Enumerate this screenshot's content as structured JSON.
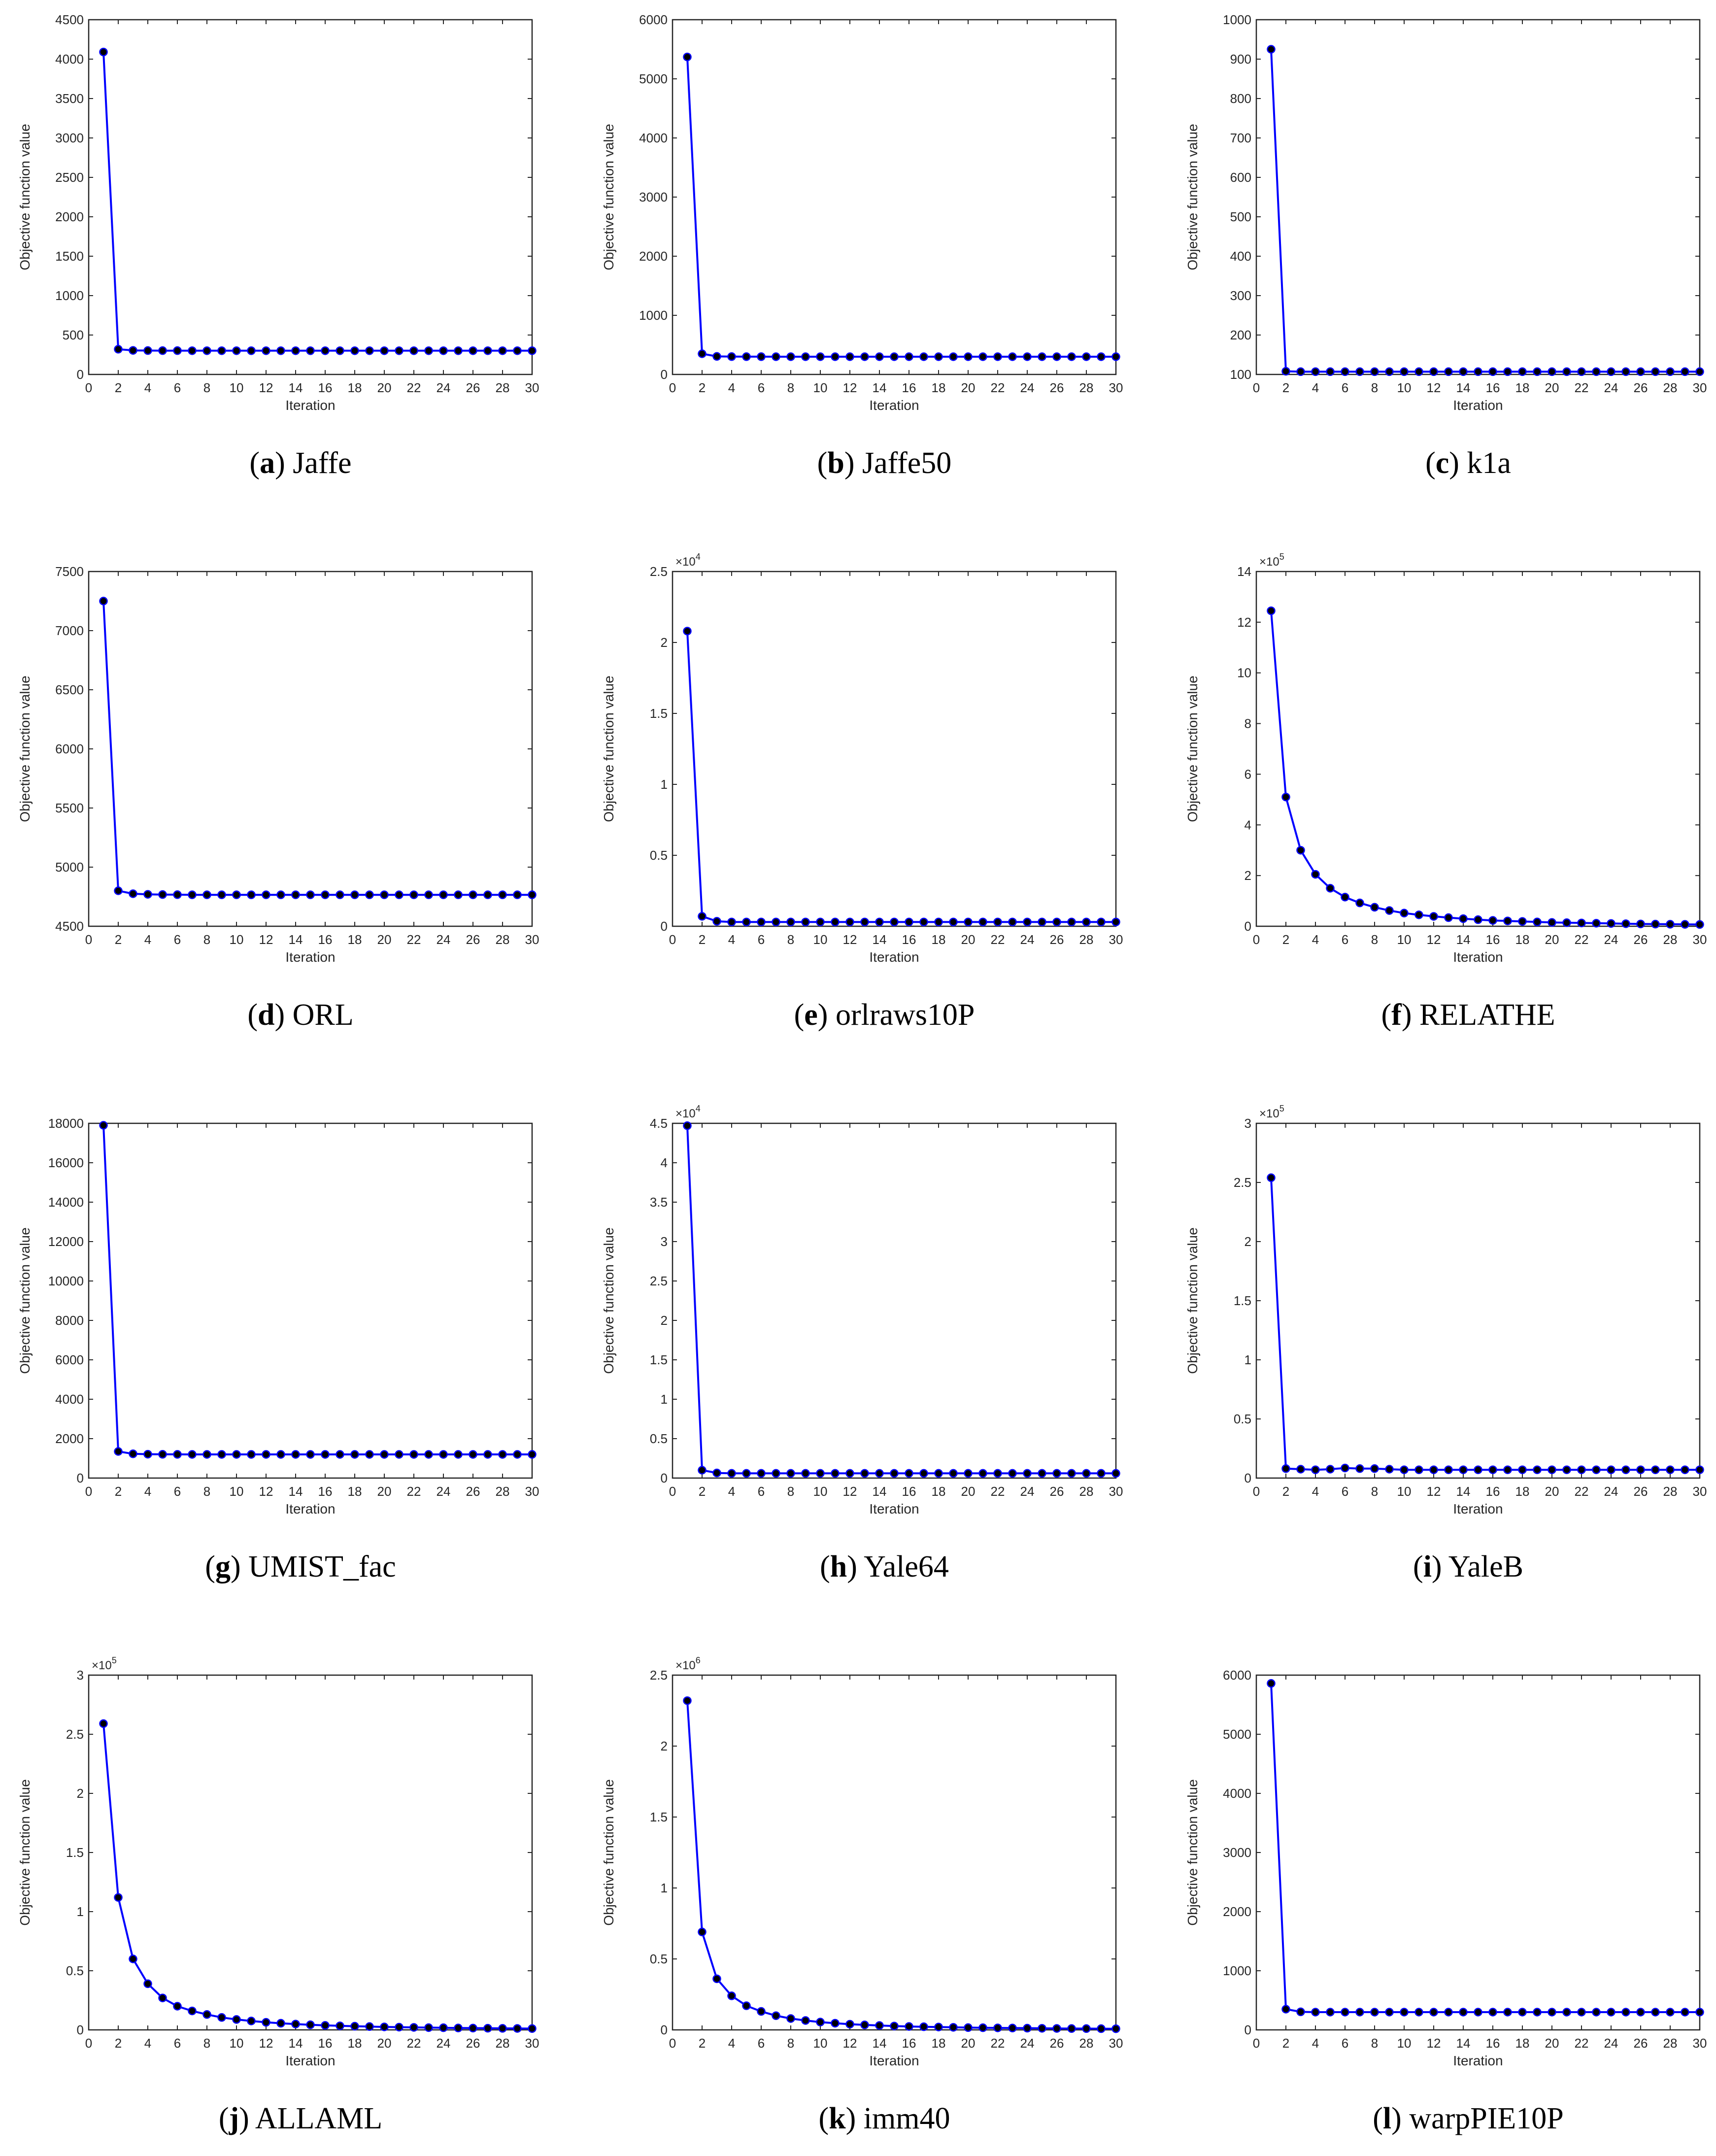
{
  "chart_data": [
    {
      "type": "line",
      "panel": "a",
      "caption": "Jaffe",
      "xlabel": "Iteration",
      "ylabel": "Objective function value",
      "xlim": [
        0,
        30
      ],
      "ylim": [
        0,
        4500
      ],
      "xticks": [
        0,
        2,
        4,
        6,
        8,
        10,
        12,
        14,
        16,
        18,
        20,
        22,
        24,
        26,
        28,
        30
      ],
      "yticks": [
        0,
        500,
        1000,
        1500,
        2000,
        2500,
        3000,
        3500,
        4000,
        4500
      ],
      "multiplier": "",
      "x": [
        1,
        2,
        3,
        4,
        5,
        6,
        7,
        8,
        9,
        10,
        11,
        12,
        13,
        14,
        15,
        16,
        17,
        18,
        19,
        20,
        21,
        22,
        23,
        24,
        25,
        26,
        27,
        28,
        29,
        30
      ],
      "series": [
        {
          "name": "Objective",
          "values": [
            4090,
            320,
            305,
            303,
            302,
            302,
            301,
            301,
            301,
            301,
            301,
            301,
            301,
            301,
            301,
            301,
            301,
            301,
            301,
            301,
            301,
            301,
            301,
            301,
            301,
            301,
            301,
            301,
            301,
            301
          ]
        }
      ]
    },
    {
      "type": "line",
      "panel": "b",
      "caption": "Jaffe50",
      "xlabel": "Iteration",
      "ylabel": "Objective function value",
      "xlim": [
        0,
        30
      ],
      "ylim": [
        0,
        6000
      ],
      "xticks": [
        0,
        2,
        4,
        6,
        8,
        10,
        12,
        14,
        16,
        18,
        20,
        22,
        24,
        26,
        28,
        30
      ],
      "yticks": [
        0,
        1000,
        2000,
        3000,
        4000,
        5000,
        6000
      ],
      "multiplier": "",
      "x": [
        1,
        2,
        3,
        4,
        5,
        6,
        7,
        8,
        9,
        10,
        11,
        12,
        13,
        14,
        15,
        16,
        17,
        18,
        19,
        20,
        21,
        22,
        23,
        24,
        25,
        26,
        27,
        28,
        29,
        30
      ],
      "series": [
        {
          "name": "Objective",
          "values": [
            5370,
            350,
            305,
            302,
            301,
            301,
            300,
            300,
            300,
            300,
            300,
            300,
            300,
            300,
            300,
            300,
            300,
            300,
            300,
            300,
            300,
            300,
            300,
            300,
            300,
            300,
            300,
            300,
            300,
            300
          ]
        }
      ]
    },
    {
      "type": "line",
      "panel": "c",
      "caption": "k1a",
      "xlabel": "Iteration",
      "ylabel": "Objective function value",
      "xlim": [
        0,
        30
      ],
      "ylim": [
        100,
        1000
      ],
      "xticks": [
        0,
        2,
        4,
        6,
        8,
        10,
        12,
        14,
        16,
        18,
        20,
        22,
        24,
        26,
        28,
        30
      ],
      "yticks": [
        100,
        200,
        300,
        400,
        500,
        600,
        700,
        800,
        900,
        1000
      ],
      "multiplier": "",
      "x": [
        1,
        2,
        3,
        4,
        5,
        6,
        7,
        8,
        9,
        10,
        11,
        12,
        13,
        14,
        15,
        16,
        17,
        18,
        19,
        20,
        21,
        22,
        23,
        24,
        25,
        26,
        27,
        28,
        29,
        30
      ],
      "series": [
        {
          "name": "Objective",
          "values": [
            925,
            108,
            107,
            107,
            107,
            107,
            107,
            107,
            107,
            107,
            107,
            107,
            107,
            107,
            107,
            107,
            107,
            107,
            107,
            107,
            107,
            107,
            107,
            107,
            107,
            107,
            107,
            107,
            107,
            107
          ]
        }
      ]
    },
    {
      "type": "line",
      "panel": "d",
      "caption": "ORL",
      "xlabel": "Iteration",
      "ylabel": "Objective function value",
      "xlim": [
        0,
        30
      ],
      "ylim": [
        4500,
        7500
      ],
      "xticks": [
        0,
        2,
        4,
        6,
        8,
        10,
        12,
        14,
        16,
        18,
        20,
        22,
        24,
        26,
        28,
        30
      ],
      "yticks": [
        4500,
        5000,
        5500,
        6000,
        6500,
        7000,
        7500
      ],
      "multiplier": "",
      "x": [
        1,
        2,
        3,
        4,
        5,
        6,
        7,
        8,
        9,
        10,
        11,
        12,
        13,
        14,
        15,
        16,
        17,
        18,
        19,
        20,
        21,
        22,
        23,
        24,
        25,
        26,
        27,
        28,
        29,
        30
      ],
      "series": [
        {
          "name": "Objective",
          "values": [
            7250,
            4800,
            4775,
            4770,
            4768,
            4767,
            4766,
            4766,
            4766,
            4766,
            4766,
            4766,
            4766,
            4766,
            4766,
            4766,
            4766,
            4766,
            4766,
            4766,
            4766,
            4766,
            4766,
            4766,
            4766,
            4766,
            4766,
            4766,
            4766,
            4766
          ]
        }
      ]
    },
    {
      "type": "line",
      "panel": "e",
      "caption": "orlraws10P",
      "xlabel": "Iteration",
      "ylabel": "Objective function value",
      "xlim": [
        0,
        30
      ],
      "ylim": [
        0,
        2.5
      ],
      "xticks": [
        0,
        2,
        4,
        6,
        8,
        10,
        12,
        14,
        16,
        18,
        20,
        22,
        24,
        26,
        28,
        30
      ],
      "yticks": [
        0,
        0.5,
        1,
        1.5,
        2,
        2.5
      ],
      "multiplier": "×10",
      "multiplier_exp": "4",
      "x": [
        1,
        2,
        3,
        4,
        5,
        6,
        7,
        8,
        9,
        10,
        11,
        12,
        13,
        14,
        15,
        16,
        17,
        18,
        19,
        20,
        21,
        22,
        23,
        24,
        25,
        26,
        27,
        28,
        29,
        30
      ],
      "series": [
        {
          "name": "Objective",
          "values": [
            2.08,
            0.07,
            0.035,
            0.03,
            0.03,
            0.03,
            0.03,
            0.03,
            0.03,
            0.03,
            0.03,
            0.03,
            0.03,
            0.03,
            0.03,
            0.03,
            0.03,
            0.03,
            0.03,
            0.03,
            0.03,
            0.03,
            0.03,
            0.03,
            0.03,
            0.03,
            0.03,
            0.03,
            0.03,
            0.03
          ]
        }
      ]
    },
    {
      "type": "line",
      "panel": "f",
      "caption": "RELATHE",
      "xlabel": "Iteration",
      "ylabel": "Objective function value",
      "xlim": [
        0,
        30
      ],
      "ylim": [
        0,
        14
      ],
      "xticks": [
        0,
        2,
        4,
        6,
        8,
        10,
        12,
        14,
        16,
        18,
        20,
        22,
        24,
        26,
        28,
        30
      ],
      "yticks": [
        0,
        2,
        4,
        6,
        8,
        10,
        12,
        14
      ],
      "multiplier": "×10",
      "multiplier_exp": "5",
      "x": [
        1,
        2,
        3,
        4,
        5,
        6,
        7,
        8,
        9,
        10,
        11,
        12,
        13,
        14,
        15,
        16,
        17,
        18,
        19,
        20,
        21,
        22,
        23,
        24,
        25,
        26,
        27,
        28,
        29,
        30
      ],
      "series": [
        {
          "name": "Objective",
          "values": [
            12.45,
            5.1,
            3.0,
            2.05,
            1.5,
            1.15,
            0.92,
            0.75,
            0.62,
            0.52,
            0.45,
            0.39,
            0.34,
            0.3,
            0.26,
            0.23,
            0.21,
            0.19,
            0.17,
            0.15,
            0.14,
            0.13,
            0.12,
            0.11,
            0.1,
            0.09,
            0.085,
            0.08,
            0.075,
            0.07
          ]
        }
      ]
    },
    {
      "type": "line",
      "panel": "g",
      "caption": "UMIST_fac",
      "xlabel": "Iteration",
      "ylabel": "Objective function value",
      "xlim": [
        0,
        30
      ],
      "ylim": [
        0,
        18000
      ],
      "xticks": [
        0,
        2,
        4,
        6,
        8,
        10,
        12,
        14,
        16,
        18,
        20,
        22,
        24,
        26,
        28,
        30
      ],
      "yticks": [
        0,
        2000,
        4000,
        6000,
        8000,
        10000,
        12000,
        14000,
        16000,
        18000
      ],
      "multiplier": "",
      "x": [
        1,
        2,
        3,
        4,
        5,
        6,
        7,
        8,
        9,
        10,
        11,
        12,
        13,
        14,
        15,
        16,
        17,
        18,
        19,
        20,
        21,
        22,
        23,
        24,
        25,
        26,
        27,
        28,
        29,
        30
      ],
      "series": [
        {
          "name": "Objective",
          "values": [
            17900,
            1350,
            1230,
            1210,
            1205,
            1202,
            1200,
            1200,
            1200,
            1200,
            1200,
            1200,
            1200,
            1200,
            1200,
            1200,
            1200,
            1200,
            1200,
            1200,
            1200,
            1200,
            1200,
            1200,
            1200,
            1200,
            1200,
            1200,
            1200,
            1200
          ]
        }
      ]
    },
    {
      "type": "line",
      "panel": "h",
      "caption": "Yale64",
      "xlabel": "Iteration",
      "ylabel": "Objective function value",
      "xlim": [
        0,
        30
      ],
      "ylim": [
        0,
        4.5
      ],
      "xticks": [
        0,
        2,
        4,
        6,
        8,
        10,
        12,
        14,
        16,
        18,
        20,
        22,
        24,
        26,
        28,
        30
      ],
      "yticks": [
        0,
        0.5,
        1,
        1.5,
        2,
        2.5,
        3,
        3.5,
        4,
        4.5
      ],
      "multiplier": "×10",
      "multiplier_exp": "4",
      "x": [
        1,
        2,
        3,
        4,
        5,
        6,
        7,
        8,
        9,
        10,
        11,
        12,
        13,
        14,
        15,
        16,
        17,
        18,
        19,
        20,
        21,
        22,
        23,
        24,
        25,
        26,
        27,
        28,
        29,
        30
      ],
      "series": [
        {
          "name": "Objective",
          "values": [
            4.47,
            0.1,
            0.065,
            0.06,
            0.06,
            0.06,
            0.06,
            0.06,
            0.06,
            0.06,
            0.06,
            0.06,
            0.06,
            0.06,
            0.06,
            0.06,
            0.06,
            0.06,
            0.06,
            0.06,
            0.06,
            0.06,
            0.06,
            0.06,
            0.06,
            0.06,
            0.06,
            0.06,
            0.06,
            0.06
          ]
        }
      ]
    },
    {
      "type": "line",
      "panel": "i",
      "caption": "YaleB",
      "xlabel": "Iteration",
      "ylabel": "Objective function value",
      "xlim": [
        0,
        30
      ],
      "ylim": [
        0,
        3
      ],
      "xticks": [
        0,
        2,
        4,
        6,
        8,
        10,
        12,
        14,
        16,
        18,
        20,
        22,
        24,
        26,
        28,
        30
      ],
      "yticks": [
        0,
        0.5,
        1,
        1.5,
        2,
        2.5,
        3
      ],
      "multiplier": "×10",
      "multiplier_exp": "5",
      "x": [
        1,
        2,
        3,
        4,
        5,
        6,
        7,
        8,
        9,
        10,
        11,
        12,
        13,
        14,
        15,
        16,
        17,
        18,
        19,
        20,
        21,
        22,
        23,
        24,
        25,
        26,
        27,
        28,
        29,
        30
      ],
      "series": [
        {
          "name": "Objective",
          "values": [
            2.54,
            0.08,
            0.075,
            0.07,
            0.075,
            0.085,
            0.08,
            0.08,
            0.075,
            0.07,
            0.07,
            0.07,
            0.07,
            0.07,
            0.07,
            0.07,
            0.07,
            0.07,
            0.07,
            0.07,
            0.07,
            0.07,
            0.07,
            0.07,
            0.07,
            0.07,
            0.07,
            0.07,
            0.07,
            0.07
          ]
        }
      ]
    },
    {
      "type": "line",
      "panel": "j",
      "caption": "ALLAML",
      "xlabel": "Iteration",
      "ylabel": "Objective function value",
      "xlim": [
        0,
        30
      ],
      "ylim": [
        0,
        3
      ],
      "xticks": [
        0,
        2,
        4,
        6,
        8,
        10,
        12,
        14,
        16,
        18,
        20,
        22,
        24,
        26,
        28,
        30
      ],
      "yticks": [
        0,
        0.5,
        1,
        1.5,
        2,
        2.5,
        3
      ],
      "multiplier": "×10",
      "multiplier_exp": "5",
      "x": [
        1,
        2,
        3,
        4,
        5,
        6,
        7,
        8,
        9,
        10,
        11,
        12,
        13,
        14,
        15,
        16,
        17,
        18,
        19,
        20,
        21,
        22,
        23,
        24,
        25,
        26,
        27,
        28,
        29,
        30
      ],
      "series": [
        {
          "name": "Objective",
          "values": [
            2.59,
            1.12,
            0.6,
            0.39,
            0.27,
            0.2,
            0.16,
            0.13,
            0.105,
            0.088,
            0.075,
            0.064,
            0.056,
            0.049,
            0.043,
            0.038,
            0.034,
            0.031,
            0.028,
            0.025,
            0.023,
            0.021,
            0.019,
            0.018,
            0.016,
            0.015,
            0.014,
            0.013,
            0.012,
            0.011
          ]
        }
      ]
    },
    {
      "type": "line",
      "panel": "k",
      "caption": "imm40",
      "xlabel": "Iteration",
      "ylabel": "Objective function value",
      "xlim": [
        0,
        30
      ],
      "ylim": [
        0,
        2.5
      ],
      "xticks": [
        0,
        2,
        4,
        6,
        8,
        10,
        12,
        14,
        16,
        18,
        20,
        22,
        24,
        26,
        28,
        30
      ],
      "yticks": [
        0,
        0.5,
        1,
        1.5,
        2,
        2.5
      ],
      "multiplier": "×10",
      "multiplier_exp": "6",
      "x": [
        1,
        2,
        3,
        4,
        5,
        6,
        7,
        8,
        9,
        10,
        11,
        12,
        13,
        14,
        15,
        16,
        17,
        18,
        19,
        20,
        21,
        22,
        23,
        24,
        25,
        26,
        27,
        28,
        29,
        30
      ],
      "series": [
        {
          "name": "Objective",
          "values": [
            2.32,
            0.69,
            0.36,
            0.24,
            0.17,
            0.13,
            0.1,
            0.08,
            0.066,
            0.055,
            0.047,
            0.04,
            0.035,
            0.031,
            0.027,
            0.024,
            0.022,
            0.02,
            0.018,
            0.016,
            0.015,
            0.014,
            0.013,
            0.012,
            0.011,
            0.01,
            0.0095,
            0.009,
            0.0085,
            0.008
          ]
        }
      ]
    },
    {
      "type": "line",
      "panel": "l",
      "caption": "warpPIE10P",
      "xlabel": "Iteration",
      "ylabel": "Objective function value",
      "xlim": [
        0,
        30
      ],
      "ylim": [
        0,
        6000
      ],
      "xticks": [
        0,
        2,
        4,
        6,
        8,
        10,
        12,
        14,
        16,
        18,
        20,
        22,
        24,
        26,
        28,
        30
      ],
      "yticks": [
        0,
        1000,
        2000,
        3000,
        4000,
        5000,
        6000
      ],
      "multiplier": "",
      "x": [
        1,
        2,
        3,
        4,
        5,
        6,
        7,
        8,
        9,
        10,
        11,
        12,
        13,
        14,
        15,
        16,
        17,
        18,
        19,
        20,
        21,
        22,
        23,
        24,
        25,
        26,
        27,
        28,
        29,
        30
      ],
      "series": [
        {
          "name": "Objective",
          "values": [
            5860,
            350,
            305,
            300,
            300,
            300,
            300,
            300,
            300,
            300,
            300,
            300,
            300,
            300,
            300,
            300,
            300,
            300,
            300,
            300,
            300,
            300,
            300,
            300,
            300,
            300,
            300,
            300,
            300,
            300
          ]
        }
      ]
    }
  ],
  "colors": {
    "line": "#0000ff",
    "marker": "#000000",
    "axis": "#262626",
    "text": "#262626",
    "caption": "#000000"
  }
}
